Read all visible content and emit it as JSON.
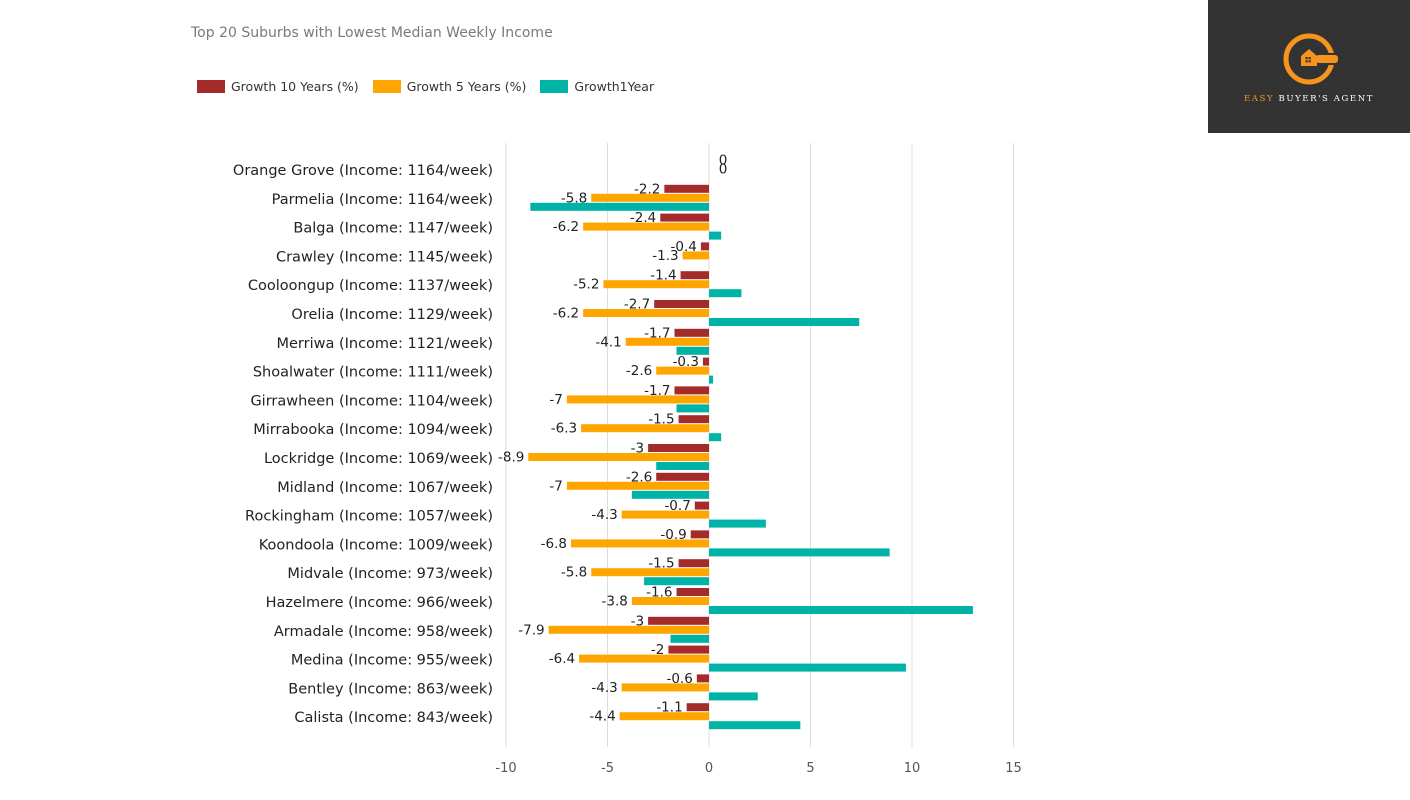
{
  "brand": {
    "name_accent": "EASY",
    "name_rest": " BUYER'S AGENT",
    "logo_icon": "wrench-house-icon",
    "logo_color": "#f7941d",
    "logo_bg": "#333333"
  },
  "chart_data": {
    "type": "bar",
    "orientation": "horizontal",
    "title": "Top 20 Suburbs with Lowest Median Weekly Income",
    "xlim": [
      -10,
      15
    ],
    "xticks": [
      -10,
      -5,
      0,
      5,
      10,
      15
    ],
    "grid": true,
    "legend_position": "top-left",
    "categories": [
      "Orange Grove (Income:  1164/week)",
      "Parmelia (Income:  1164/week)",
      "Balga (Income:  1147/week)",
      "Crawley (Income:  1145/week)",
      "Cooloongup (Income:  1137/week)",
      "Orelia (Income:  1129/week)",
      "Merriwa (Income:  1121/week)",
      "Shoalwater (Income:  1111/week)",
      "Girrawheen (Income:  1104/week)",
      "Mirrabooka (Income:  1094/week)",
      "Lockridge (Income:  1069/week)",
      "Midland (Income:  1067/week)",
      "Rockingham (Income:  1057/week)",
      "Koondoola (Income:  1009/week)",
      "Midvale (Income:  973/week)",
      "Hazelmere (Income:  966/week)",
      "Armadale (Income:  958/week)",
      "Medina (Income:  955/week)",
      "Bentley (Income:  863/week)",
      "Calista (Income:  843/week)"
    ],
    "series": [
      {
        "name": "Growth 10 Years (%)",
        "color": "#a52a2a",
        "labeled": true,
        "values": [
          0,
          -2.2,
          -2.4,
          -0.4,
          -1.4,
          -2.7,
          -1.7,
          -0.3,
          -1.7,
          -1.5,
          -3,
          -2.6,
          -0.7,
          -0.9,
          -1.5,
          -1.6,
          -3,
          -2,
          -0.6,
          -1.1
        ]
      },
      {
        "name": "Growth 5 Years (%)",
        "color": "#ffa500",
        "labeled": true,
        "values": [
          0,
          -5.8,
          -6.2,
          -1.3,
          -5.2,
          -6.2,
          -4.1,
          -2.6,
          -7,
          -6.3,
          -8.9,
          -7,
          -4.3,
          -6.8,
          -5.8,
          -3.8,
          -7.9,
          -6.4,
          -4.3,
          -4.4
        ]
      },
      {
        "name": "Growth1Year",
        "color": "#00b3a7",
        "labeled": false,
        "values": [
          0,
          -8.8,
          0.6,
          0,
          1.6,
          7.4,
          -1.6,
          0.2,
          -1.6,
          0.6,
          -2.6,
          -3.8,
          2.8,
          8.9,
          -3.2,
          13,
          -1.9,
          9.7,
          2.4,
          4.5
        ]
      }
    ]
  }
}
